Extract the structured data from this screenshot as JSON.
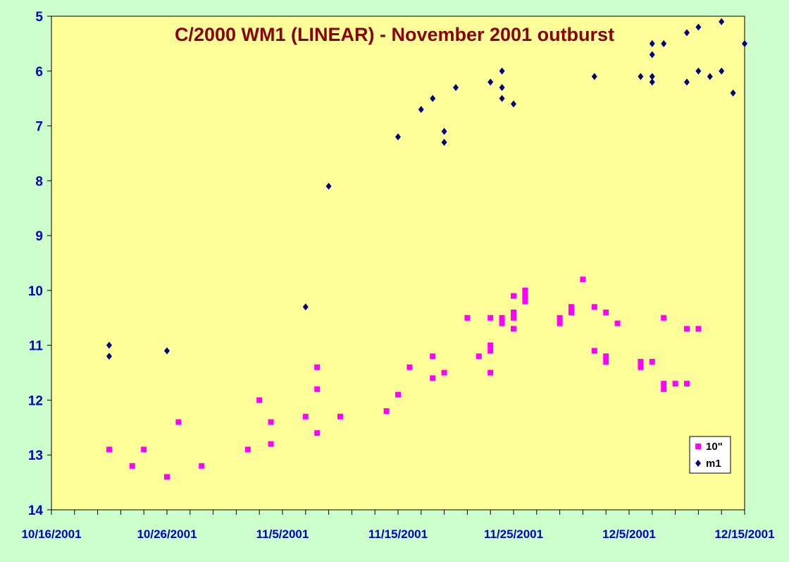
{
  "chart_data": {
    "type": "scatter",
    "title": "C/2000 WM1 (LINEAR) - November 2001 outburst",
    "xlabel": "",
    "ylabel": "",
    "x_axis": {
      "type": "date",
      "range": [
        "2001-10-16",
        "2001-12-15"
      ],
      "tick_labels": [
        "10/16/2001",
        "10/26/2001",
        "11/5/2001",
        "11/15/2001",
        "11/25/2001",
        "12/5/2001",
        "12/15/2001"
      ],
      "minor_tick_days": 2
    },
    "y_axis": {
      "reversed": true,
      "range": [
        5,
        14
      ],
      "tick_labels": [
        "5",
        "6",
        "7",
        "8",
        "9",
        "10",
        "11",
        "12",
        "13",
        "14"
      ]
    },
    "grid": false,
    "legend_position": "bottom-right",
    "colors": {
      "background": "#ccffcc",
      "plot_area": "#ffff99",
      "title": "#8b0000",
      "axis_labels": "#0000cc"
    },
    "series": [
      {
        "name": "10\"",
        "marker": "square",
        "color": "#ff00ff",
        "points": [
          [
            "2001-10-21",
            12.9
          ],
          [
            "2001-10-23",
            13.2
          ],
          [
            "2001-10-24",
            12.9
          ],
          [
            "2001-10-26",
            13.4
          ],
          [
            "2001-10-27",
            12.4
          ],
          [
            "2001-10-29",
            13.2
          ],
          [
            "2001-11-02",
            12.9
          ],
          [
            "2001-11-03",
            12.0
          ],
          [
            "2001-11-04",
            12.4
          ],
          [
            "2001-11-04",
            12.8
          ],
          [
            "2001-11-07",
            12.3
          ],
          [
            "2001-11-08",
            11.4
          ],
          [
            "2001-11-08",
            11.8
          ],
          [
            "2001-11-08",
            12.6
          ],
          [
            "2001-11-10",
            12.3
          ],
          [
            "2001-11-14",
            12.2
          ],
          [
            "2001-11-15",
            11.9
          ],
          [
            "2001-11-16",
            11.4
          ],
          [
            "2001-11-18",
            11.2
          ],
          [
            "2001-11-18",
            11.6
          ],
          [
            "2001-11-19",
            11.5
          ],
          [
            "2001-11-21",
            10.5
          ],
          [
            "2001-11-22",
            11.2
          ],
          [
            "2001-11-23",
            10.5
          ],
          [
            "2001-11-23",
            11.0
          ],
          [
            "2001-11-23",
            11.1
          ],
          [
            "2001-11-23",
            11.5
          ],
          [
            "2001-11-24",
            10.5
          ],
          [
            "2001-11-24",
            10.6
          ],
          [
            "2001-11-25",
            10.1
          ],
          [
            "2001-11-25",
            10.4
          ],
          [
            "2001-11-25",
            10.5
          ],
          [
            "2001-11-25",
            10.7
          ],
          [
            "2001-11-26",
            10.0
          ],
          [
            "2001-11-26",
            10.1
          ],
          [
            "2001-11-26",
            10.2
          ],
          [
            "2001-11-29",
            10.5
          ],
          [
            "2001-11-29",
            10.6
          ],
          [
            "2001-11-30",
            10.3
          ],
          [
            "2001-11-30",
            10.4
          ],
          [
            "2001-12-01",
            9.8
          ],
          [
            "2001-12-02",
            10.3
          ],
          [
            "2001-12-02",
            11.1
          ],
          [
            "2001-12-03",
            10.4
          ],
          [
            "2001-12-03",
            11.2
          ],
          [
            "2001-12-03",
            11.3
          ],
          [
            "2001-12-04",
            10.6
          ],
          [
            "2001-12-06",
            11.3
          ],
          [
            "2001-12-06",
            11.4
          ],
          [
            "2001-12-07",
            11.3
          ],
          [
            "2001-12-08",
            10.5
          ],
          [
            "2001-12-08",
            11.7
          ],
          [
            "2001-12-08",
            11.8
          ],
          [
            "2001-12-09",
            11.7
          ],
          [
            "2001-12-10",
            10.7
          ],
          [
            "2001-12-10",
            11.7
          ],
          [
            "2001-12-11",
            10.7
          ]
        ]
      },
      {
        "name": "m1",
        "marker": "diamond",
        "color": "#000080",
        "points": [
          [
            "2001-10-21",
            11.0
          ],
          [
            "2001-10-21",
            11.2
          ],
          [
            "2001-10-26",
            11.1
          ],
          [
            "2001-11-07",
            10.3
          ],
          [
            "2001-11-09",
            8.1
          ],
          [
            "2001-11-15",
            7.2
          ],
          [
            "2001-11-17",
            6.7
          ],
          [
            "2001-11-18",
            6.5
          ],
          [
            "2001-11-19",
            7.1
          ],
          [
            "2001-11-19",
            7.3
          ],
          [
            "2001-11-20",
            6.3
          ],
          [
            "2001-11-23",
            6.2
          ],
          [
            "2001-11-24",
            6.0
          ],
          [
            "2001-11-24",
            6.3
          ],
          [
            "2001-11-24",
            6.5
          ],
          [
            "2001-11-25",
            6.6
          ],
          [
            "2001-12-02",
            6.1
          ],
          [
            "2001-12-06",
            6.1
          ],
          [
            "2001-12-07",
            5.5
          ],
          [
            "2001-12-07",
            5.7
          ],
          [
            "2001-12-07",
            6.1
          ],
          [
            "2001-12-07",
            6.2
          ],
          [
            "2001-12-08",
            5.5
          ],
          [
            "2001-12-10",
            5.3
          ],
          [
            "2001-12-10",
            6.2
          ],
          [
            "2001-12-11",
            5.2
          ],
          [
            "2001-12-11",
            6.0
          ],
          [
            "2001-12-12",
            6.1
          ],
          [
            "2001-12-13",
            5.1
          ],
          [
            "2001-12-13",
            6.0
          ],
          [
            "2001-12-14",
            6.4
          ],
          [
            "2001-12-15",
            5.5
          ]
        ]
      }
    ]
  }
}
